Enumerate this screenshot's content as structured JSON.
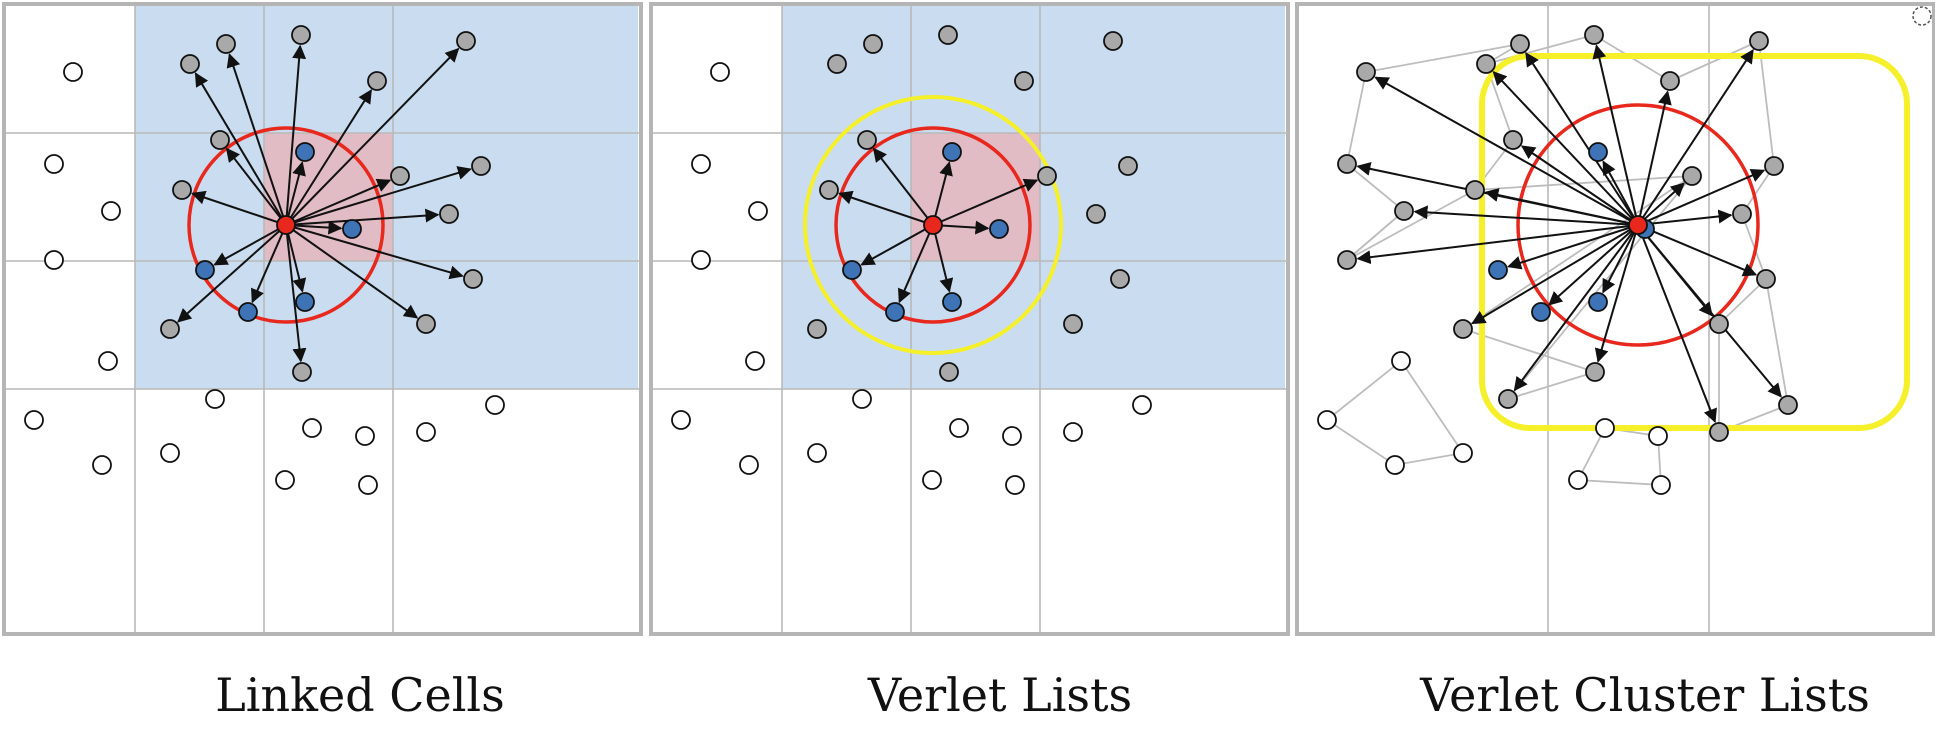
{
  "panels": [
    {
      "id": "linked-cells",
      "caption": "Linked Cells"
    },
    {
      "id": "verlet-lists",
      "caption": "Verlet Lists"
    },
    {
      "id": "verlet-cluster-lists",
      "caption": "Verlet Cluster Lists"
    }
  ],
  "colors": {
    "panel_border": "#b5b5b5",
    "grid_line": "#b9b9b9",
    "neighbor_cell_fill": "#c9dcf0",
    "home_cell_fill": "#e2bcc5",
    "cutoff_circle": "#e8281c",
    "verlet_skin": "#f5f02a",
    "central_particle": "#e8281c",
    "neighbor_particle": "#3e73b6",
    "candidate_particle": "#a9a9a9",
    "far_particle": "#ffffff",
    "arrow": "#111111",
    "cluster_edge": "#bdbdbd"
  },
  "legend_roles": [
    "central-particle",
    "neighbor-particle",
    "candidate-particle",
    "far-particle"
  ]
}
